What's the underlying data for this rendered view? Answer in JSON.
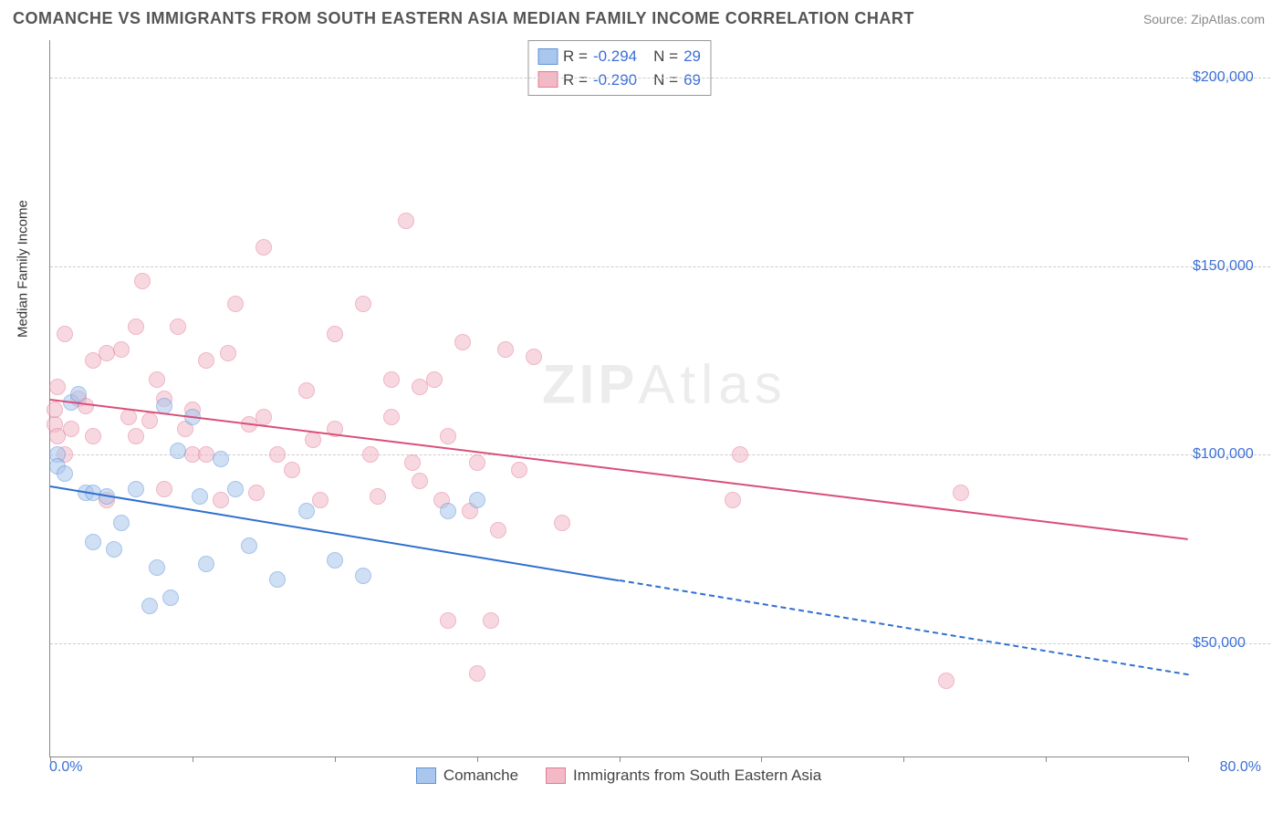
{
  "title": "COMANCHE VS IMMIGRANTS FROM SOUTH EASTERN ASIA MEDIAN FAMILY INCOME CORRELATION CHART",
  "source": "Source: ZipAtlas.com",
  "watermark": {
    "bold": "ZIP",
    "light": "Atlas"
  },
  "chart": {
    "type": "scatter",
    "xlabel": "",
    "ylabel": "Median Family Income",
    "xlim": [
      0,
      80
    ],
    "ylim": [
      20000,
      210000
    ],
    "xticks": [
      0,
      10,
      20,
      30,
      40,
      50,
      60,
      70,
      80
    ],
    "xtick_labels": {
      "min": "0.0%",
      "max": "80.0%"
    },
    "yticks": [
      50000,
      100000,
      150000,
      200000
    ],
    "ytick_labels": [
      "$50,000",
      "$100,000",
      "$150,000",
      "$200,000"
    ],
    "grid_color": "#cccccc",
    "border_color": "#888888",
    "axis_value_color": "#3b6fd6",
    "background_color": "#ffffff",
    "marker_radius": 9,
    "marker_opacity": 0.55,
    "series": [
      {
        "name": "Comanche",
        "fill": "#a9c6ec",
        "stroke": "#5f93d8",
        "line_color": "#2f6fd0",
        "r": -0.294,
        "n": 29,
        "trend": {
          "x1": 0,
          "y1": 92000,
          "x2": 80,
          "y2": 42000,
          "solid_until_x": 40
        },
        "points": [
          [
            0.5,
            100000
          ],
          [
            0.5,
            97000
          ],
          [
            1,
            95000
          ],
          [
            1.5,
            114000
          ],
          [
            2,
            116000
          ],
          [
            2.5,
            90000
          ],
          [
            3,
            77000
          ],
          [
            3,
            90000
          ],
          [
            4,
            89000
          ],
          [
            4.5,
            75000
          ],
          [
            5,
            82000
          ],
          [
            6,
            91000
          ],
          [
            7,
            60000
          ],
          [
            7.5,
            70000
          ],
          [
            8,
            113000
          ],
          [
            8.5,
            62000
          ],
          [
            9,
            101000
          ],
          [
            10,
            110000
          ],
          [
            10.5,
            89000
          ],
          [
            11,
            71000
          ],
          [
            12,
            99000
          ],
          [
            13,
            91000
          ],
          [
            14,
            76000
          ],
          [
            16,
            67000
          ],
          [
            18,
            85000
          ],
          [
            20,
            72000
          ],
          [
            22,
            68000
          ],
          [
            28,
            85000
          ],
          [
            30,
            88000
          ]
        ]
      },
      {
        "name": "Immigrants from South Eastern Asia",
        "fill": "#f3b9c7",
        "stroke": "#e37a98",
        "line_color": "#d94f78",
        "r": -0.29,
        "n": 69,
        "trend": {
          "x1": 0,
          "y1": 115000,
          "x2": 80,
          "y2": 78000,
          "solid_until_x": 80
        },
        "points": [
          [
            0.3,
            108000
          ],
          [
            0.3,
            112000
          ],
          [
            0.5,
            105000
          ],
          [
            0.5,
            118000
          ],
          [
            1,
            100000
          ],
          [
            1,
            132000
          ],
          [
            1.5,
            107000
          ],
          [
            2,
            115000
          ],
          [
            2.5,
            113000
          ],
          [
            3,
            105000
          ],
          [
            3,
            125000
          ],
          [
            4,
            88000
          ],
          [
            4,
            127000
          ],
          [
            5,
            128000
          ],
          [
            5.5,
            110000
          ],
          [
            6,
            105000
          ],
          [
            6,
            134000
          ],
          [
            7,
            109000
          ],
          [
            7.5,
            120000
          ],
          [
            8,
            91000
          ],
          [
            8,
            115000
          ],
          [
            9,
            134000
          ],
          [
            9.5,
            107000
          ],
          [
            10,
            100000
          ],
          [
            10,
            112000
          ],
          [
            11,
            100000
          ],
          [
            11,
            125000
          ],
          [
            12,
            88000
          ],
          [
            12.5,
            127000
          ],
          [
            13,
            140000
          ],
          [
            14,
            108000
          ],
          [
            14.5,
            90000
          ],
          [
            15,
            110000
          ],
          [
            15,
            155000
          ],
          [
            16,
            100000
          ],
          [
            17,
            96000
          ],
          [
            18,
            117000
          ],
          [
            18.5,
            104000
          ],
          [
            19,
            88000
          ],
          [
            20,
            107000
          ],
          [
            20,
            132000
          ],
          [
            22,
            140000
          ],
          [
            22.5,
            100000
          ],
          [
            23,
            89000
          ],
          [
            24,
            110000
          ],
          [
            24,
            120000
          ],
          [
            25,
            162000
          ],
          [
            25.5,
            98000
          ],
          [
            26,
            118000
          ],
          [
            26,
            93000
          ],
          [
            27,
            120000
          ],
          [
            27.5,
            88000
          ],
          [
            28,
            105000
          ],
          [
            28,
            56000
          ],
          [
            29,
            130000
          ],
          [
            29.5,
            85000
          ],
          [
            30,
            98000
          ],
          [
            30,
            42000
          ],
          [
            31,
            56000
          ],
          [
            31.5,
            80000
          ],
          [
            32,
            128000
          ],
          [
            33,
            96000
          ],
          [
            34,
            126000
          ],
          [
            36,
            82000
          ],
          [
            48,
            88000
          ],
          [
            63,
            40000
          ],
          [
            64,
            90000
          ],
          [
            48.5,
            100000
          ],
          [
            6.5,
            146000
          ]
        ]
      }
    ]
  },
  "legend_top": {
    "r_label": "R =",
    "n_label": "N ="
  }
}
